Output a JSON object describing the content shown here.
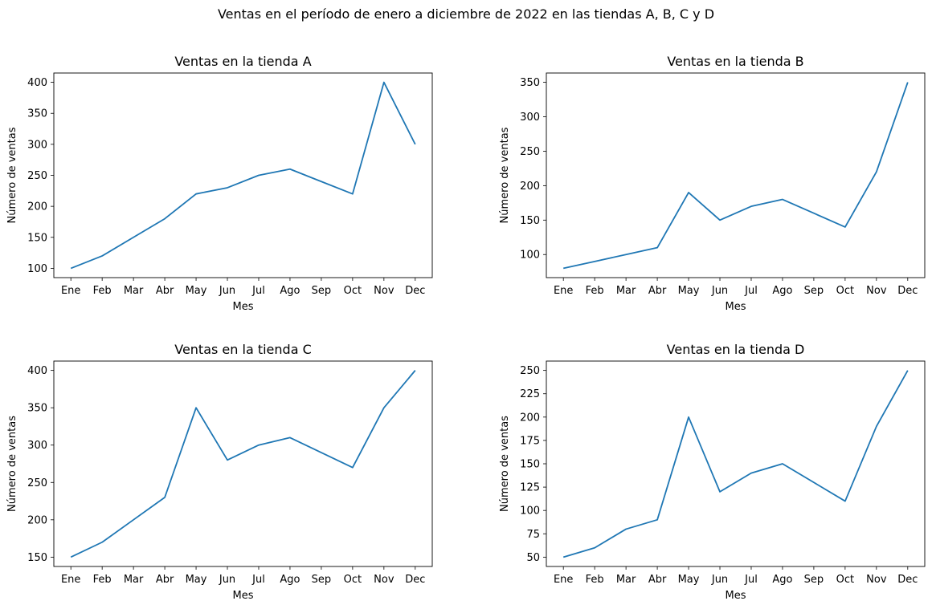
{
  "figure": {
    "suptitle": "Ventas en el período de enero a diciembre de 2022 en las tiendas A, B, C y D",
    "line_color": "#1f77b4"
  },
  "chart_data": [
    {
      "type": "line",
      "title": "Ventas en la tienda A",
      "xlabel": "Mes",
      "ylabel": "Número de ventas",
      "categories": [
        "Ene",
        "Feb",
        "Mar",
        "Abr",
        "May",
        "Jun",
        "Jul",
        "Ago",
        "Sep",
        "Oct",
        "Nov",
        "Dec"
      ],
      "values": [
        100,
        120,
        150,
        180,
        220,
        230,
        250,
        260,
        240,
        220,
        400,
        300
      ],
      "ylim": [
        85,
        415
      ],
      "yticks": [
        100,
        150,
        200,
        250,
        300,
        350,
        400
      ],
      "grid": false
    },
    {
      "type": "line",
      "title": "Ventas en la tienda B",
      "xlabel": "Mes",
      "ylabel": "Número de ventas",
      "categories": [
        "Ene",
        "Feb",
        "Mar",
        "Abr",
        "May",
        "Jun",
        "Jul",
        "Ago",
        "Sep",
        "Oct",
        "Nov",
        "Dec"
      ],
      "values": [
        80,
        90,
        100,
        110,
        190,
        150,
        170,
        180,
        160,
        140,
        220,
        350
      ],
      "ylim": [
        66.5,
        363.5
      ],
      "yticks": [
        100,
        150,
        200,
        250,
        300,
        350
      ],
      "grid": false
    },
    {
      "type": "line",
      "title": "Ventas en la tienda C",
      "xlabel": "Mes",
      "ylabel": "Número de ventas",
      "categories": [
        "Ene",
        "Feb",
        "Mar",
        "Abr",
        "May",
        "Jun",
        "Jul",
        "Ago",
        "Sep",
        "Oct",
        "Nov",
        "Dec"
      ],
      "values": [
        150,
        170,
        200,
        230,
        350,
        280,
        300,
        310,
        290,
        270,
        350,
        400
      ],
      "ylim": [
        137.5,
        412.5
      ],
      "yticks": [
        150,
        200,
        250,
        300,
        350,
        400
      ],
      "grid": false
    },
    {
      "type": "line",
      "title": "Ventas en la tienda D",
      "xlabel": "Mes",
      "ylabel": "Número de ventas",
      "categories": [
        "Ene",
        "Feb",
        "Mar",
        "Abr",
        "May",
        "Jun",
        "Jul",
        "Ago",
        "Sep",
        "Oct",
        "Nov",
        "Dec"
      ],
      "values": [
        50,
        60,
        80,
        90,
        200,
        120,
        140,
        150,
        130,
        110,
        190,
        250
      ],
      "ylim": [
        40,
        260
      ],
      "yticks": [
        50,
        75,
        100,
        125,
        150,
        175,
        200,
        225,
        250
      ],
      "grid": false
    }
  ]
}
